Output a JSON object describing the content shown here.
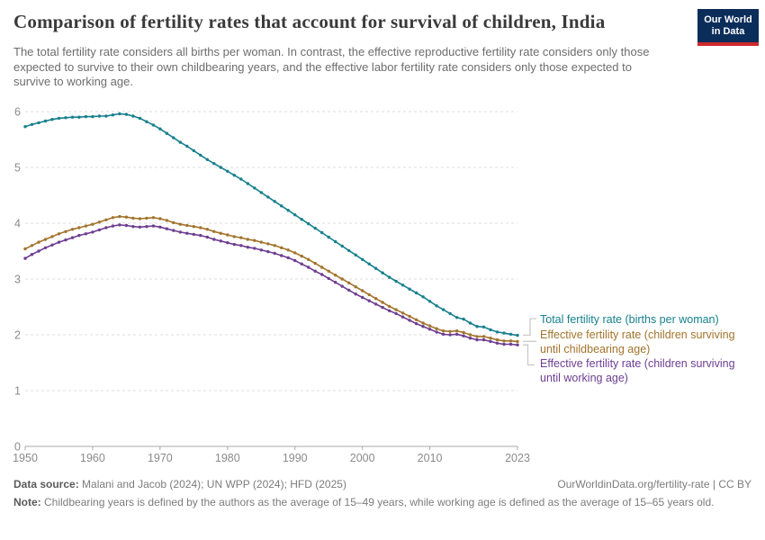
{
  "header": {
    "title": "Comparison of fertility rates that account for survival of children, India",
    "subtitle": "The total fertility rate considers all births per woman. In contrast, the effective reproductive fertility rate considers only those expected to survive to their own childbearing years, and the effective labor fertility rate considers only those expected to survive to working age.",
    "logo": {
      "line1": "Our World",
      "line2": "in Data",
      "bg_color": "#0b2d59",
      "bar_color": "#ce2a2d"
    }
  },
  "footer": {
    "source_label": "Data source:",
    "source_text": " Malani and Jacob (2024); UN WPP (2024); HFD (2025)",
    "rights": "OurWorldinData.org/fertility-rate | CC BY",
    "note_label": "Note:",
    "note_text": " Childbearing years is defined by the authors as the average of 15–49 years, while working age is defined as the average of 15–65 years old."
  },
  "chart_data": {
    "type": "line",
    "title": "Comparison of fertility rates that account for survival of children, India",
    "xlabel": "",
    "ylabel": "",
    "xlim": [
      1950,
      2023
    ],
    "ylim": [
      0,
      6
    ],
    "x_ticks": [
      1950,
      1960,
      1970,
      1980,
      1990,
      2000,
      2010,
      2023
    ],
    "y_ticks": [
      0,
      1,
      2,
      3,
      4,
      5,
      6
    ],
    "grid": "dashed horizontal",
    "legend_position": "right of line ends, connected with gray brackets",
    "series": [
      {
        "name": "Total fertility rate (births per woman)",
        "color": "#17808d",
        "values": [
          5.73,
          5.77,
          5.8,
          5.83,
          5.86,
          5.88,
          5.89,
          5.9,
          5.9,
          5.91,
          5.91,
          5.92,
          5.92,
          5.94,
          5.96,
          5.95,
          5.92,
          5.88,
          5.82,
          5.76,
          5.69,
          5.61,
          5.53,
          5.45,
          5.38,
          5.3,
          5.22,
          5.14,
          5.07,
          5.0,
          4.93,
          4.86,
          4.79,
          4.71,
          4.63,
          4.55,
          4.47,
          4.39,
          4.31,
          4.23,
          4.15,
          4.07,
          3.99,
          3.91,
          3.83,
          3.75,
          3.67,
          3.59,
          3.51,
          3.43,
          3.35,
          3.27,
          3.19,
          3.11,
          3.03,
          2.96,
          2.89,
          2.82,
          2.75,
          2.68,
          2.6,
          2.52,
          2.45,
          2.38,
          2.31,
          2.28,
          2.21,
          2.15,
          2.14,
          2.09,
          2.05,
          2.03,
          2.01,
          1.99
        ]
      },
      {
        "name": "Effective fertility rate (children surviving until childbearing age)",
        "color": "#a2742c",
        "values": [
          3.54,
          3.6,
          3.66,
          3.71,
          3.76,
          3.81,
          3.85,
          3.89,
          3.92,
          3.95,
          3.98,
          4.02,
          4.06,
          4.1,
          4.12,
          4.11,
          4.09,
          4.08,
          4.09,
          4.1,
          4.08,
          4.05,
          4.01,
          3.98,
          3.96,
          3.94,
          3.92,
          3.89,
          3.85,
          3.82,
          3.79,
          3.76,
          3.74,
          3.71,
          3.69,
          3.66,
          3.63,
          3.6,
          3.56,
          3.52,
          3.47,
          3.41,
          3.35,
          3.28,
          3.21,
          3.14,
          3.07,
          3.0,
          2.93,
          2.86,
          2.79,
          2.72,
          2.65,
          2.58,
          2.51,
          2.45,
          2.39,
          2.33,
          2.27,
          2.21,
          2.16,
          2.11,
          2.07,
          2.06,
          2.07,
          2.04,
          2.0,
          1.97,
          1.97,
          1.94,
          1.91,
          1.89,
          1.89,
          1.88
        ]
      },
      {
        "name": "Effective fertility rate (children surviving until working age)",
        "color": "#6d3e91",
        "values": [
          3.37,
          3.44,
          3.5,
          3.56,
          3.61,
          3.66,
          3.7,
          3.74,
          3.78,
          3.81,
          3.84,
          3.88,
          3.92,
          3.95,
          3.97,
          3.96,
          3.94,
          3.93,
          3.94,
          3.95,
          3.93,
          3.9,
          3.87,
          3.84,
          3.82,
          3.8,
          3.78,
          3.75,
          3.71,
          3.68,
          3.65,
          3.62,
          3.6,
          3.57,
          3.55,
          3.52,
          3.49,
          3.46,
          3.42,
          3.38,
          3.33,
          3.27,
          3.21,
          3.14,
          3.08,
          3.01,
          2.94,
          2.87,
          2.8,
          2.73,
          2.67,
          2.61,
          2.55,
          2.49,
          2.43,
          2.38,
          2.32,
          2.26,
          2.2,
          2.15,
          2.1,
          2.05,
          2.01,
          2.0,
          2.01,
          1.98,
          1.94,
          1.91,
          1.91,
          1.88,
          1.85,
          1.83,
          1.83,
          1.82
        ]
      }
    ],
    "legend": [
      {
        "line1": "Total fertility rate (births per woman)",
        "line2": ""
      },
      {
        "line1": "Effective fertility rate (children surviving",
        "line2": "until childbearing age)"
      },
      {
        "line1": "Effective fertility rate (children surviving",
        "line2": "until working age)"
      }
    ]
  }
}
